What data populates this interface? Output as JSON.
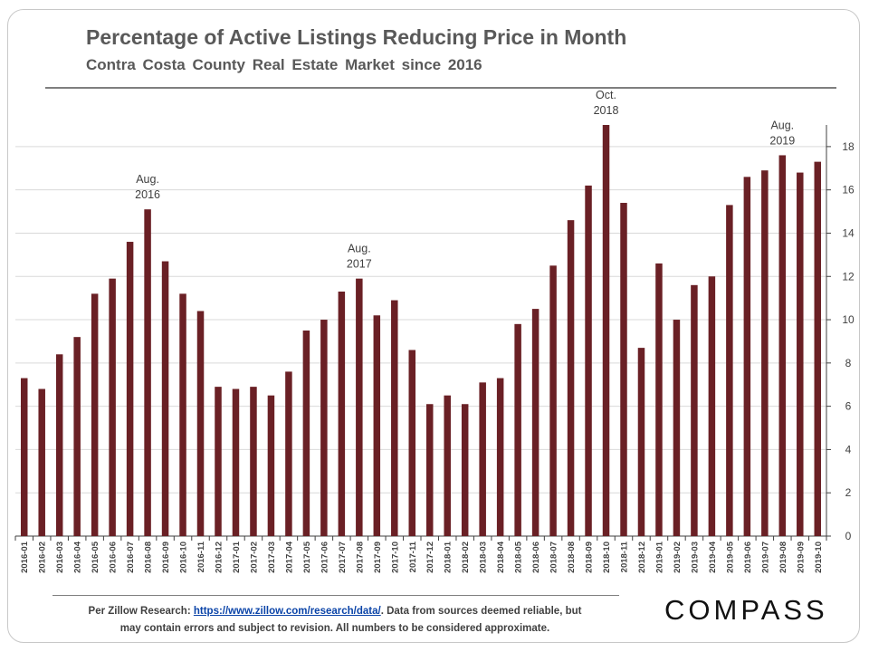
{
  "header": {
    "title": "Percentage of Active Listings Reducing Price in Month",
    "subtitle": "Contra Costa County Real Estate Market since 2016"
  },
  "footer": {
    "prefix": "Per Zillow Research: ",
    "link_text": "https://www.zillow.com/research/data/",
    "suffix": ". Data from sources deemed reliable, but",
    "line2": "may contain errors and subject to revision.  All numbers to be considered approximate."
  },
  "brand": {
    "logo": "COMPASS"
  },
  "colors": {
    "bar": "#6a2025",
    "grid": "#d9d9d9",
    "axis": "#404040",
    "text": "#404040"
  },
  "chart_data": {
    "type": "bar",
    "title": "Percentage of Active Listings Reducing Price in Month",
    "xlabel": "",
    "ylabel": "",
    "ylim": [
      0,
      19
    ],
    "yticks": [
      0,
      2,
      4,
      6,
      8,
      10,
      12,
      14,
      16,
      18
    ],
    "y_axis_side": "right",
    "grid": true,
    "categories": [
      "2016-01",
      "2016-02",
      "2016-03",
      "2016-04",
      "2016-05",
      "2016-06",
      "2016-07",
      "2016-08",
      "2016-09",
      "2016-10",
      "2016-11",
      "2016-12",
      "2017-01",
      "2017-02",
      "2017-03",
      "2017-04",
      "2017-05",
      "2017-06",
      "2017-07",
      "2017-08",
      "2017-09",
      "2017-10",
      "2017-11",
      "2017-12",
      "2018-01",
      "2018-02",
      "2018-03",
      "2018-04",
      "2018-05",
      "2018-06",
      "2018-07",
      "2018-08",
      "2018-09",
      "2018-10",
      "2018-11",
      "2018-12",
      "2019-01",
      "2019-02",
      "2019-03",
      "2019-04",
      "2019-05",
      "2019-06",
      "2019-07",
      "2019-08",
      "2019-09",
      "2019-10"
    ],
    "values": [
      7.3,
      6.8,
      8.4,
      9.2,
      11.2,
      11.9,
      13.6,
      15.1,
      12.7,
      11.2,
      10.4,
      6.9,
      6.8,
      6.9,
      6.5,
      7.6,
      9.5,
      10.0,
      11.3,
      11.9,
      10.2,
      10.9,
      8.6,
      6.1,
      6.5,
      6.1,
      7.1,
      7.3,
      9.8,
      10.5,
      12.5,
      14.6,
      16.2,
      19.0,
      15.4,
      8.7,
      12.6,
      10.0,
      11.6,
      12.0,
      15.3,
      16.6,
      16.9,
      17.6,
      16.8,
      17.3
    ],
    "annotations": [
      {
        "category": "2016-08",
        "lines": [
          "Aug.",
          "2016"
        ]
      },
      {
        "category": "2017-08",
        "lines": [
          "Aug.",
          "2017"
        ]
      },
      {
        "category": "2018-10",
        "lines": [
          "Oct.",
          "2018"
        ]
      },
      {
        "category": "2019-08",
        "lines": [
          "Aug.",
          "2019"
        ]
      }
    ]
  }
}
